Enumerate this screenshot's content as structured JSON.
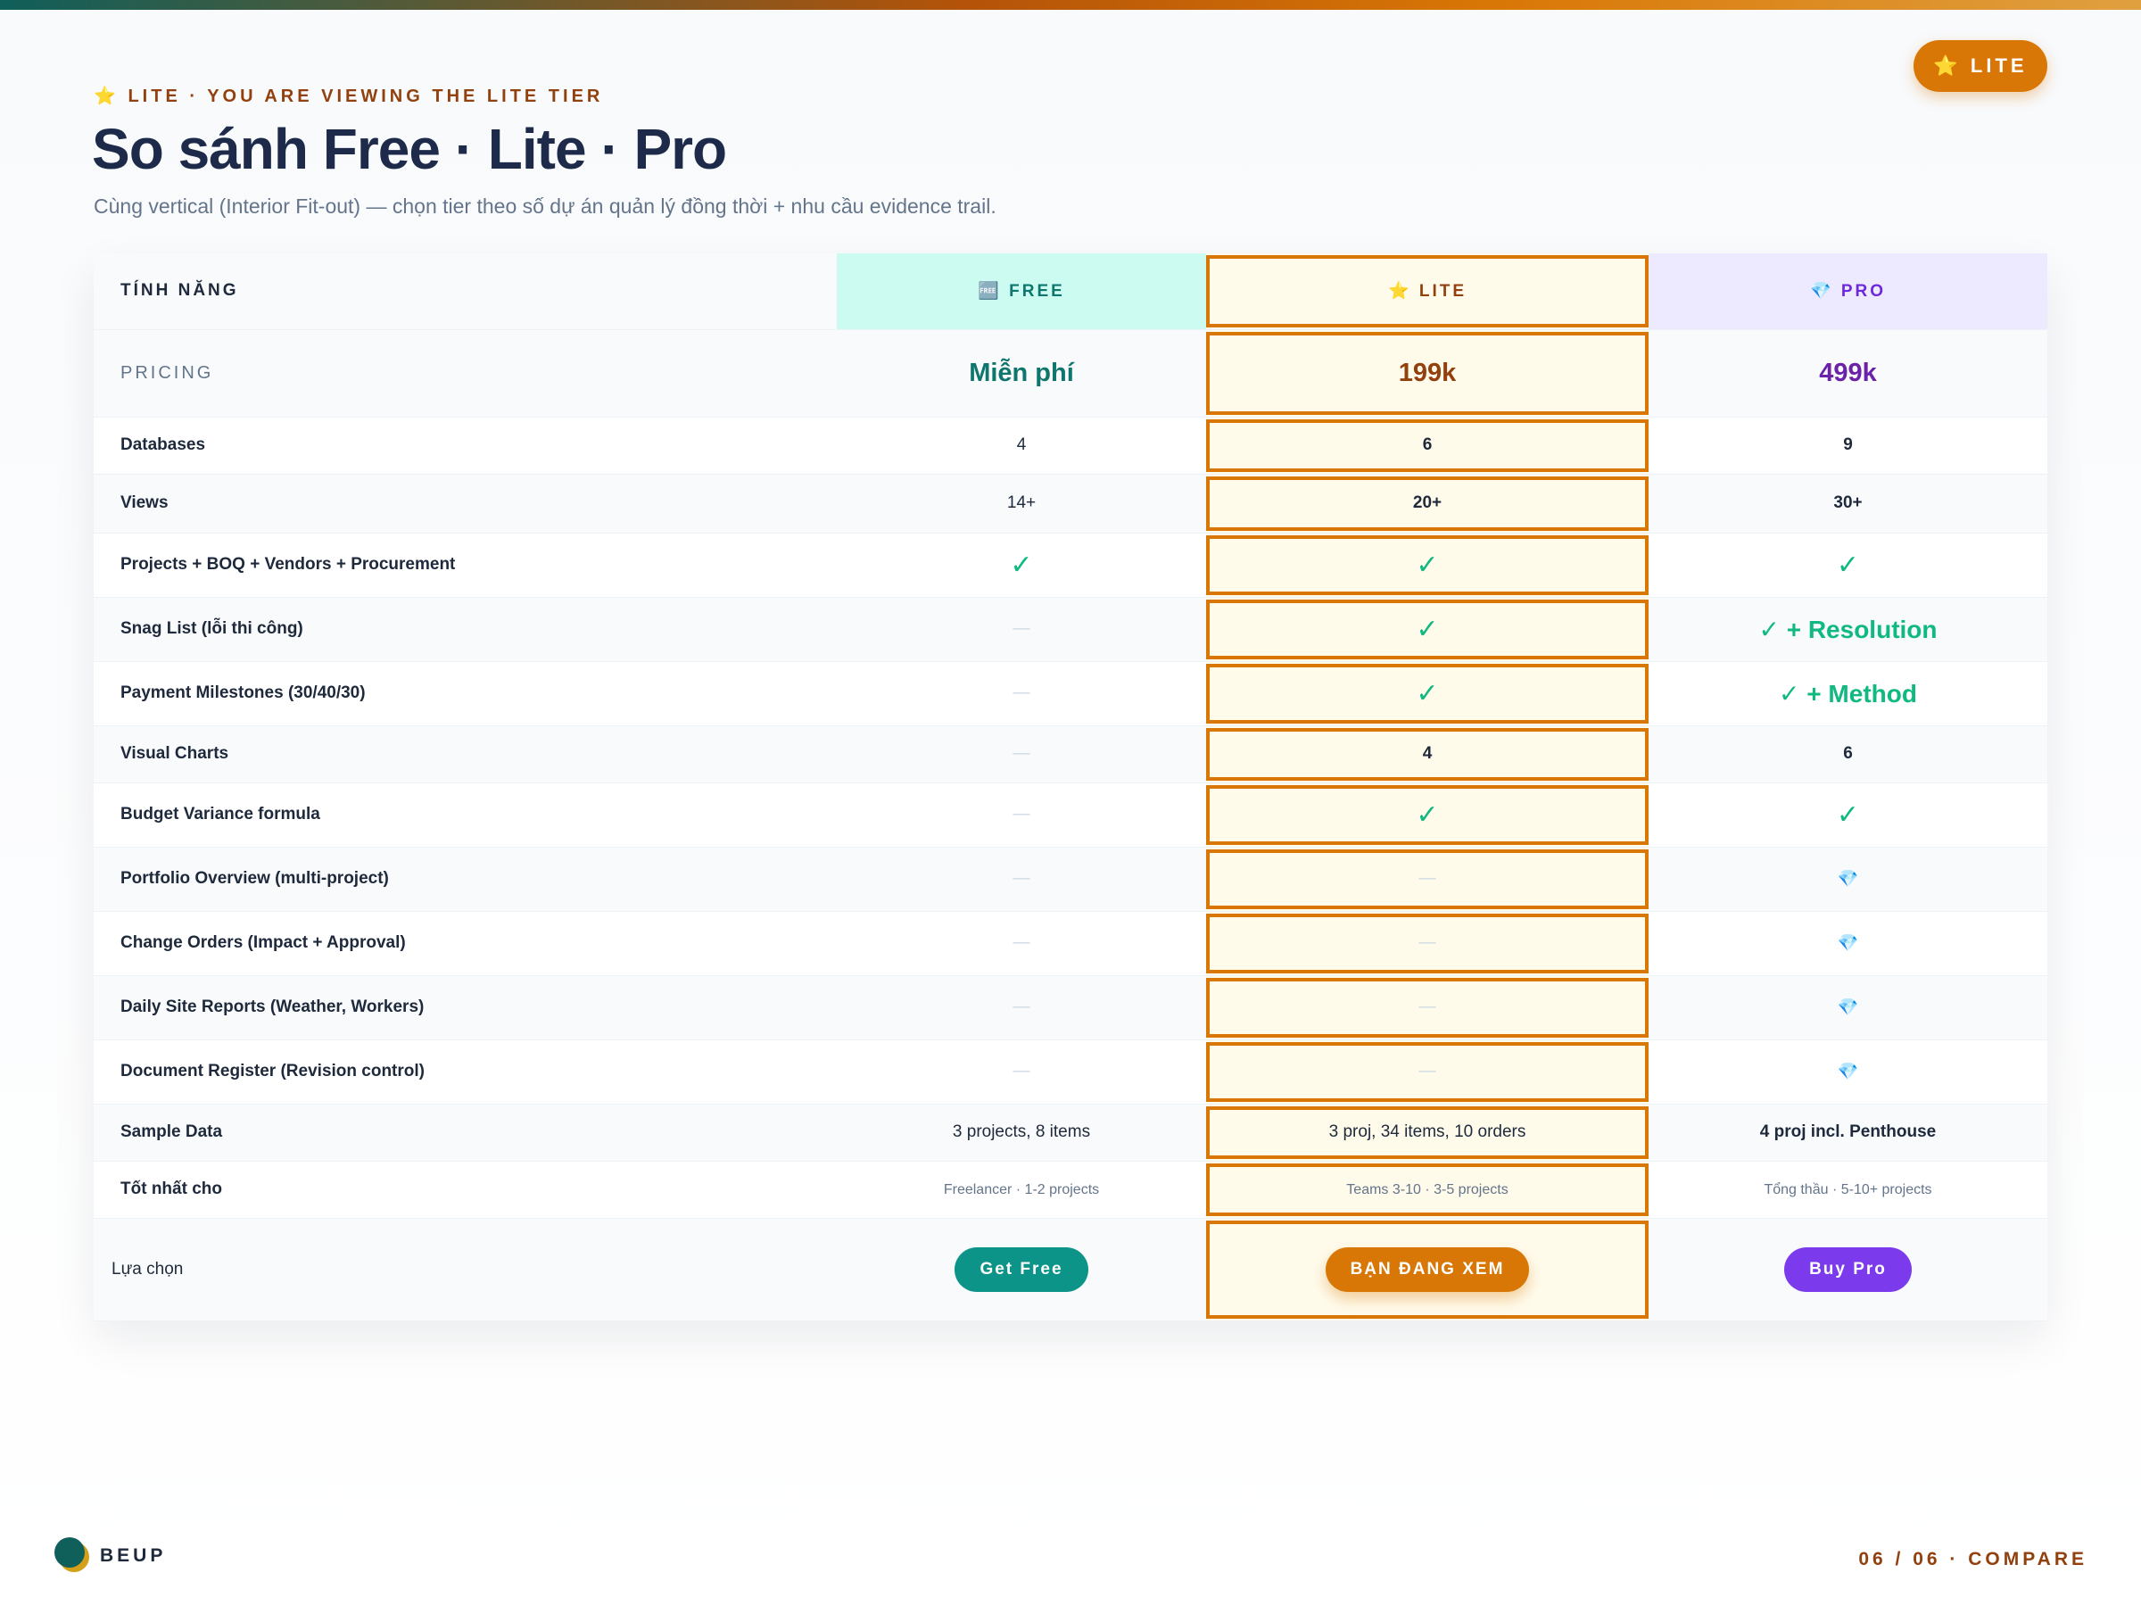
{
  "badge": "⭐ LITE",
  "header": {
    "kicker": "⭐ LITE · YOU ARE VIEWING THE LITE TIER",
    "title": "So sánh Free · Lite · Pro",
    "subtitle": "Cùng vertical (Interior Fit-out) — chọn tier theo số dự án quản lý đồng thời + nhu cầu evidence trail."
  },
  "table": {
    "columns": [
      "TÍNH NĂNG",
      "🆓 FREE",
      "⭐ LITE",
      "💎 PRO"
    ],
    "rows": [
      [
        "PRICING",
        "Miễn phí",
        "199k",
        "499k"
      ],
      [
        "Databases",
        "4",
        "6",
        "9"
      ],
      [
        "Views",
        "14+",
        "20+",
        "30+"
      ],
      [
        "Projects + BOQ + Vendors + Procurement",
        "✓",
        "✓",
        "✓"
      ],
      [
        "Snag List (lỗi thi công)",
        "—",
        "✓",
        "✓ + Resolution"
      ],
      [
        "Payment Milestones (30/40/30)",
        "—",
        "✓",
        "✓ + Method"
      ],
      [
        "Visual Charts",
        "—",
        "4",
        "6"
      ],
      [
        "Budget Variance formula",
        "—",
        "✓",
        "✓"
      ],
      [
        "Portfolio Overview (multi-project)",
        "—",
        "—",
        "💎"
      ],
      [
        "Change Orders (Impact + Approval)",
        "—",
        "—",
        "💎"
      ],
      [
        "Daily Site Reports (Weather, Workers)",
        "—",
        "—",
        "💎"
      ],
      [
        "Document Register (Revision control)",
        "—",
        "—",
        "💎"
      ],
      [
        "Sample Data",
        "3 projects, 8 items",
        "3 proj, 34 items, 10 orders",
        "4 proj incl. Penthouse"
      ],
      [
        "Tốt nhất cho",
        "Freelancer · 1-2 projects",
        "Teams 3-10 · 3-5 projects",
        "Tổng thầu · 5-10+ projects"
      ],
      [
        "Lựa chọn",
        "Get Free",
        "BẠN ĐANG XEM",
        "Buy Pro"
      ]
    ]
  },
  "footer": {
    "brand": "BEUP",
    "page": "06 / 06 · COMPARE"
  }
}
